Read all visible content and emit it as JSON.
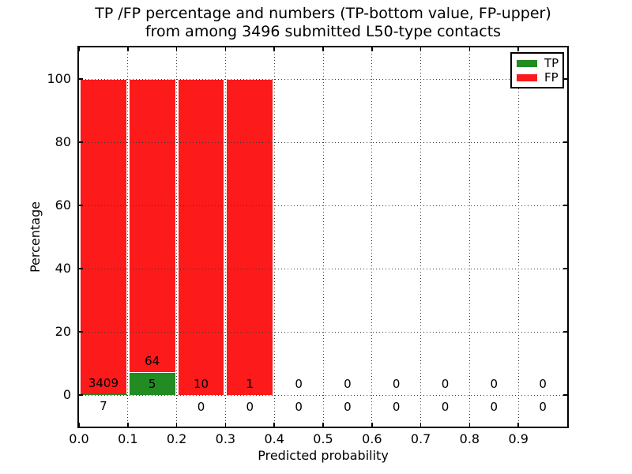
{
  "chart_data": {
    "type": "bar",
    "stacked": true,
    "title_line1": "TP /FP percentage and numbers (TP-bottom value, FP-upper)",
    "title_line2": "from among 3496 submitted L50-type contacts",
    "xlabel": "Predicted probability",
    "ylabel": "Percentage",
    "xlim": [
      0.0,
      1.0
    ],
    "ylim": [
      -10,
      110
    ],
    "xtick_labels": [
      "0.0",
      "0.1",
      "0.2",
      "0.3",
      "0.4",
      "0.5",
      "0.6",
      "0.7",
      "0.8",
      "0.9"
    ],
    "ytick_labels": [
      "0",
      "20",
      "40",
      "60",
      "80",
      "100"
    ],
    "grid_style": "dotted",
    "legend_position": "upper right",
    "total_submitted": 3496,
    "bins": [
      {
        "x0": 0.0,
        "x1": 0.1,
        "tp": 7,
        "fp": 3409
      },
      {
        "x0": 0.1,
        "x1": 0.2,
        "tp": 5,
        "fp": 64
      },
      {
        "x0": 0.2,
        "x1": 0.3,
        "tp": 0,
        "fp": 10
      },
      {
        "x0": 0.3,
        "x1": 0.4,
        "tp": 0,
        "fp": 1
      },
      {
        "x0": 0.4,
        "x1": 0.5,
        "tp": 0,
        "fp": 0
      },
      {
        "x0": 0.5,
        "x1": 0.6,
        "tp": 0,
        "fp": 0
      },
      {
        "x0": 0.6,
        "x1": 0.7,
        "tp": 0,
        "fp": 0
      },
      {
        "x0": 0.7,
        "x1": 0.8,
        "tp": 0,
        "fp": 0
      },
      {
        "x0": 0.8,
        "x1": 0.9,
        "tp": 0,
        "fp": 0
      },
      {
        "x0": 0.9,
        "x1": 1.0,
        "tp": 0,
        "fp": 0
      }
    ],
    "legend": [
      {
        "label": "TP",
        "color": "#228b22"
      },
      {
        "label": "FP",
        "color": "#fc1a1a"
      }
    ],
    "colors": {
      "tp": "#228b22",
      "fp": "#fc1a1a",
      "grid": "#3b3b3b",
      "axis": "#000000",
      "background": "#ffffff"
    }
  }
}
